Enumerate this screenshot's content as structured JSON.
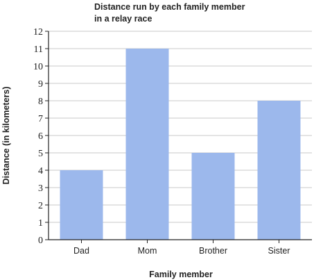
{
  "chart_data": {
    "type": "bar",
    "title": [
      "Distance run by each family member",
      "in a relay race"
    ],
    "xlabel": "Family member",
    "ylabel": "Distance (in kilometers)",
    "categories": [
      "Dad",
      "Mom",
      "Brother",
      "Sister"
    ],
    "values": [
      4,
      11,
      5,
      8
    ],
    "ylim": [
      0,
      12
    ],
    "yticks": [
      "0",
      "1",
      "2",
      "3",
      "4",
      "5",
      "6",
      "7",
      "8",
      "9",
      "10",
      "11",
      "12"
    ],
    "grid": true,
    "bar_color": "#9cb8ec"
  }
}
